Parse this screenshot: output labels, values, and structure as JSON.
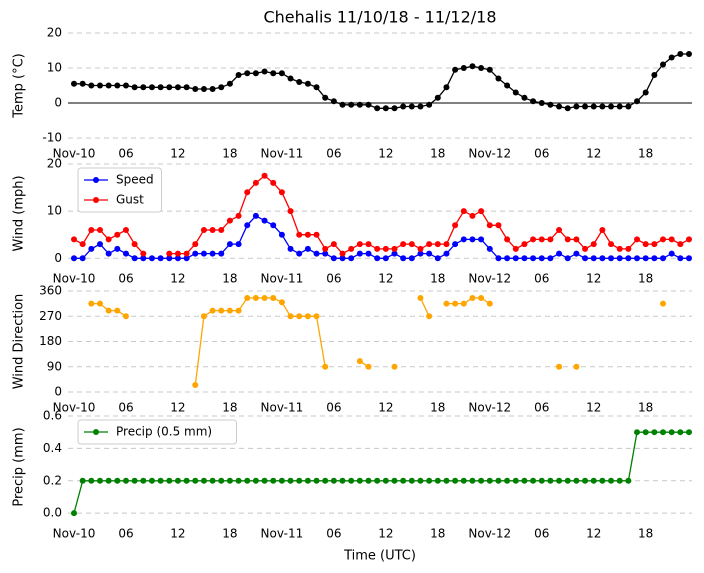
{
  "chart_data": [
    {
      "type": "line",
      "title": "Chehalis 11/10/18 - 11/12/18",
      "ylabel": "Temp (°C)",
      "categories": [
        "Nov-10",
        null,
        null,
        null,
        null,
        null,
        "06",
        null,
        null,
        null,
        null,
        null,
        "12",
        null,
        null,
        null,
        null,
        null,
        "18",
        null,
        null,
        null,
        null,
        null,
        "Nov-11",
        null,
        null,
        null,
        null,
        null,
        "06",
        null,
        null,
        null,
        null,
        null,
        "12",
        null,
        null,
        null,
        null,
        null,
        "18",
        null,
        null,
        null,
        null,
        null,
        "Nov-12",
        null,
        null,
        null,
        null,
        null,
        "06",
        null,
        null,
        null,
        null,
        null,
        "12",
        null,
        null,
        null,
        null,
        null,
        "18",
        null,
        null,
        null,
        null,
        null
      ],
      "values": [
        5.5,
        5.5,
        5,
        5,
        5,
        5,
        5,
        4.5,
        4.5,
        4.5,
        4.5,
        4.5,
        4.5,
        4.5,
        4,
        4,
        4,
        4.5,
        5.5,
        8,
        8.5,
        8.5,
        9,
        8.5,
        8.5,
        7,
        6,
        5.5,
        4.5,
        1.5,
        0.5,
        -0.5,
        -0.5,
        -0.5,
        -0.5,
        -1.5,
        -1.5,
        -1.5,
        -1,
        -1,
        -1,
        -0.5,
        1.5,
        4.5,
        9.5,
        10,
        10.5,
        10,
        9.5,
        7,
        5,
        3,
        1.5,
        0.5,
        0,
        -0.5,
        -1,
        -1.5,
        -1,
        -1,
        -1,
        -1,
        -1,
        -1,
        -1,
        0.5,
        3,
        8,
        11,
        13,
        14,
        14
      ],
      "color": "#000000",
      "ylim": [
        -10,
        20
      ],
      "yticks": [
        -10,
        0,
        10,
        20
      ],
      "hline": 0,
      "grid": true
    },
    {
      "type": "line",
      "ylabel": "Wind (mph)",
      "categories": [
        "Nov-10",
        null,
        null,
        null,
        null,
        null,
        "06",
        null,
        null,
        null,
        null,
        null,
        "12",
        null,
        null,
        null,
        null,
        null,
        "18",
        null,
        null,
        null,
        null,
        null,
        "Nov-11",
        null,
        null,
        null,
        null,
        null,
        "06",
        null,
        null,
        null,
        null,
        null,
        "12",
        null,
        null,
        null,
        null,
        null,
        "18",
        null,
        null,
        null,
        null,
        null,
        "Nov-12",
        null,
        null,
        null,
        null,
        null,
        "06",
        null,
        null,
        null,
        null,
        null,
        "12",
        null,
        null,
        null,
        null,
        null,
        "18",
        null,
        null,
        null,
        null,
        null
      ],
      "series": [
        {
          "name": "Speed",
          "color": "#0000ff",
          "values": [
            0,
            0,
            2,
            3,
            1,
            2,
            1,
            0,
            0,
            0,
            0,
            0,
            0,
            0,
            1,
            1,
            1,
            1,
            3,
            3,
            7,
            9,
            8,
            7,
            5,
            2,
            1,
            2,
            1,
            1,
            0,
            0,
            0,
            1,
            1,
            0,
            0,
            1,
            0,
            0,
            1,
            1,
            0,
            1,
            3,
            4,
            4,
            4,
            2,
            0,
            0,
            0,
            0,
            0,
            0,
            0,
            1,
            0,
            1,
            0,
            0,
            0,
            0,
            0,
            0,
            0,
            0,
            0,
            0,
            1,
            0,
            0
          ]
        },
        {
          "name": "Gust",
          "color": "#ff0000",
          "values": [
            4,
            3,
            6,
            6,
            4,
            5,
            6,
            3,
            1,
            null,
            null,
            1,
            1,
            1,
            3,
            6,
            6,
            6,
            8,
            9,
            14,
            16,
            17.5,
            16,
            14,
            10,
            5,
            5,
            5,
            2,
            3,
            1,
            2,
            3,
            3,
            2,
            2,
            2,
            3,
            3,
            2,
            3,
            3,
            3,
            7,
            10,
            9,
            10,
            7,
            7,
            4,
            2,
            3,
            4,
            4,
            4,
            6,
            4,
            4,
            2,
            3,
            6,
            3,
            2,
            2,
            4,
            3,
            3,
            4,
            4,
            3,
            4
          ]
        }
      ],
      "ylim": [
        -1,
        20
      ],
      "yticks": [
        0,
        10,
        20
      ],
      "legend": "upper left",
      "grid": true
    },
    {
      "type": "line",
      "ylabel": "Wind Direction",
      "categories": [
        "Nov-10",
        null,
        null,
        null,
        null,
        null,
        "06",
        null,
        null,
        null,
        null,
        null,
        "12",
        null,
        null,
        null,
        null,
        null,
        "18",
        null,
        null,
        null,
        null,
        null,
        "Nov-11",
        null,
        null,
        null,
        null,
        null,
        "06",
        null,
        null,
        null,
        null,
        null,
        "12",
        null,
        null,
        null,
        null,
        null,
        "18",
        null,
        null,
        null,
        null,
        null,
        "Nov-12",
        null,
        null,
        null,
        null,
        null,
        "06",
        null,
        null,
        null,
        null,
        null,
        "12",
        null,
        null,
        null,
        null,
        null,
        "18",
        null,
        null,
        null,
        null,
        null
      ],
      "values": [
        null,
        null,
        315,
        315,
        290,
        290,
        270,
        null,
        null,
        null,
        null,
        null,
        null,
        null,
        25,
        270,
        290,
        290,
        290,
        290,
        335,
        335,
        335,
        335,
        320,
        270,
        270,
        270,
        270,
        90,
        null,
        null,
        null,
        110,
        90,
        null,
        null,
        90,
        null,
        null,
        335,
        270,
        null,
        315,
        315,
        315,
        335,
        335,
        315,
        null,
        null,
        null,
        null,
        null,
        null,
        null,
        90,
        null,
        90,
        null,
        null,
        null,
        null,
        null,
        null,
        null,
        null,
        null,
        315,
        null,
        null,
        null
      ],
      "color": "#ffa500",
      "ylim": [
        0,
        360
      ],
      "yticks": [
        0,
        90,
        180,
        270,
        360
      ],
      "grid": true
    },
    {
      "type": "line",
      "ylabel": "Precip (mm)",
      "xlabel": "Time (UTC)",
      "categories": [
        "Nov-10",
        null,
        null,
        null,
        null,
        null,
        "06",
        null,
        null,
        null,
        null,
        null,
        "12",
        null,
        null,
        null,
        null,
        null,
        "18",
        null,
        null,
        null,
        null,
        null,
        "Nov-11",
        null,
        null,
        null,
        null,
        null,
        "06",
        null,
        null,
        null,
        null,
        null,
        "12",
        null,
        null,
        null,
        null,
        null,
        "18",
        null,
        null,
        null,
        null,
        null,
        "Nov-12",
        null,
        null,
        null,
        null,
        null,
        "06",
        null,
        null,
        null,
        null,
        null,
        "12",
        null,
        null,
        null,
        null,
        null,
        "18",
        null,
        null,
        null,
        null,
        null
      ],
      "series": [
        {
          "name": "Precip (0.5 mm)",
          "color": "#008000",
          "values": [
            0,
            0.2,
            0.2,
            0.2,
            0.2,
            0.2,
            0.2,
            0.2,
            0.2,
            0.2,
            0.2,
            0.2,
            0.2,
            0.2,
            0.2,
            0.2,
            0.2,
            0.2,
            0.2,
            0.2,
            0.2,
            0.2,
            0.2,
            0.2,
            0.2,
            0.2,
            0.2,
            0.2,
            0.2,
            0.2,
            0.2,
            0.2,
            0.2,
            0.2,
            0.2,
            0.2,
            0.2,
            0.2,
            0.2,
            0.2,
            0.2,
            0.2,
            0.2,
            0.2,
            0.2,
            0.2,
            0.2,
            0.2,
            0.2,
            0.2,
            0.2,
            0.2,
            0.2,
            0.2,
            0.2,
            0.2,
            0.2,
            0.2,
            0.2,
            0.2,
            0.2,
            0.2,
            0.2,
            0.2,
            0.2,
            0.5,
            0.5,
            0.5,
            0.5,
            0.5,
            0.5,
            0.5
          ]
        }
      ],
      "ylim": [
        -0.03,
        0.6
      ],
      "yticks": [
        {
          "value": 0,
          "label": "0.0"
        },
        0.2,
        0.4,
        0.6
      ],
      "legend": "upper left",
      "grid": true
    }
  ]
}
